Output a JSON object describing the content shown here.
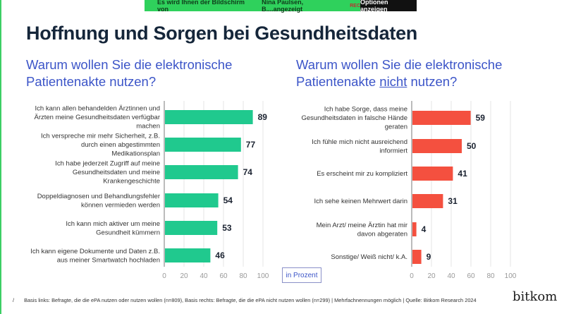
{
  "share_banner": {
    "text": "Es wird Ihnen der Bildschirm von",
    "presenter": "Nina Paulsen, B....angezeigt",
    "rec": "REC",
    "options_button": "Optionen anzeigen"
  },
  "title": "Hoffnung und Sorgen bei Gesundheitsdaten",
  "footer": {
    "page": "/",
    "note": "Basis links: Befragte, die die ePA nutzen oder nutzen wollen (n=809), Basis rechts: Befragte, die die ePA nicht nutzen wollen (n=299) | Mehrfachnennungen möglich | Quelle: Bitkom Research 2024",
    "logo": "bitkom"
  },
  "unit_label": "in Prozent",
  "chart_data": [
    {
      "type": "bar",
      "orientation": "horizontal",
      "title_parts": [
        "Warum wollen Sie die elektronische",
        "Patientenakte nutzen?"
      ],
      "color": "#20c98e",
      "xlim": [
        0,
        100
      ],
      "ticks": [
        "0",
        "20",
        "40",
        "60",
        "80",
        "100"
      ],
      "grid": true,
      "categories": [
        [
          "Ich kann allen behandelden Ärztinnen und",
          "Ärzten meine Gesundheitsdaten verfügbar",
          "machen"
        ],
        [
          "Ich verspreche mir mehr Sicherheit, z.B.",
          "durch einen abgestimmten",
          "Medikationsplan"
        ],
        [
          "Ich habe jederzeit Zugriff auf meine",
          "Gesundheitsdaten und meine",
          "Krankengeschichte"
        ],
        [
          "Doppeldiagnosen und Behandlungsfehler",
          "können vermieden werden"
        ],
        [
          "Ich kann mich aktiver um meine",
          "Gesundheit kümmern"
        ],
        [
          "Ich kann eigene Dokumente und Daten z.B.",
          "aus meiner Smartwatch hochladen"
        ]
      ],
      "values": [
        89,
        77,
        74,
        54,
        53,
        46
      ]
    },
    {
      "type": "bar",
      "orientation": "horizontal",
      "title_parts": [
        "Warum wollen Sie die elektronische",
        "Patientenakte ",
        "nicht",
        " nutzen?"
      ],
      "color": "#f4503f",
      "xlim": [
        0,
        100
      ],
      "ticks": [
        "0",
        "20",
        "40",
        "60",
        "80",
        "100"
      ],
      "grid": true,
      "categories": [
        [
          "Ich habe Sorge, dass meine",
          "Gesundheitsdaten in falsche Hände",
          "geraten"
        ],
        [
          "Ich fühle mich nicht ausreichend",
          "informiert"
        ],
        [
          "Es erscheint mir zu kompliziert"
        ],
        [
          "Ich sehe keinen Mehrwert darin"
        ],
        [
          "Mein Arzt/ meine Ärztin hat mir",
          "davon abgeraten"
        ],
        [
          "Sonstige/ Weiß nicht/ k.A."
        ]
      ],
      "values": [
        59,
        50,
        41,
        31,
        4,
        9
      ]
    }
  ]
}
